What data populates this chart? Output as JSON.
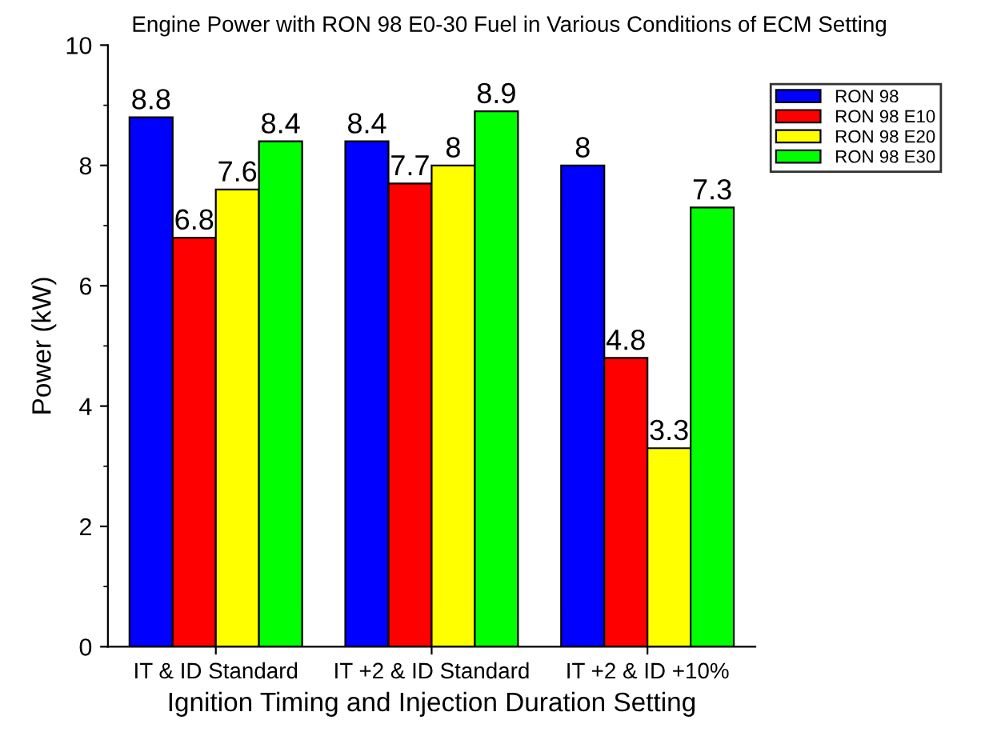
{
  "chart_data": {
    "type": "bar",
    "title": "Engine Power with RON 98 E0-30 Fuel in Various Conditions of ECM Setting",
    "xlabel": "Ignition Timing and Injection Duration Setting",
    "ylabel": "Power (kW)",
    "categories": [
      "IT & ID Standard",
      "IT +2 & ID Standard",
      "IT +2 & ID +10%"
    ],
    "series": [
      {
        "name": "RON 98",
        "color": "#0000ff",
        "values": [
          8.8,
          8.4,
          8
        ]
      },
      {
        "name": "RON 98 E10",
        "color": "#ff0000",
        "values": [
          6.8,
          7.7,
          4.8
        ]
      },
      {
        "name": "RON 98 E20",
        "color": "#ffff00",
        "values": [
          7.6,
          8,
          3.3
        ]
      },
      {
        "name": "RON 98 E30",
        "color": "#00ff00",
        "values": [
          8.4,
          8.9,
          7.3
        ]
      }
    ],
    "ylim": [
      0,
      10
    ],
    "yticks": [
      0,
      2,
      4,
      6,
      8,
      10
    ],
    "data_labels": true,
    "grid": false,
    "legend": "top right"
  }
}
